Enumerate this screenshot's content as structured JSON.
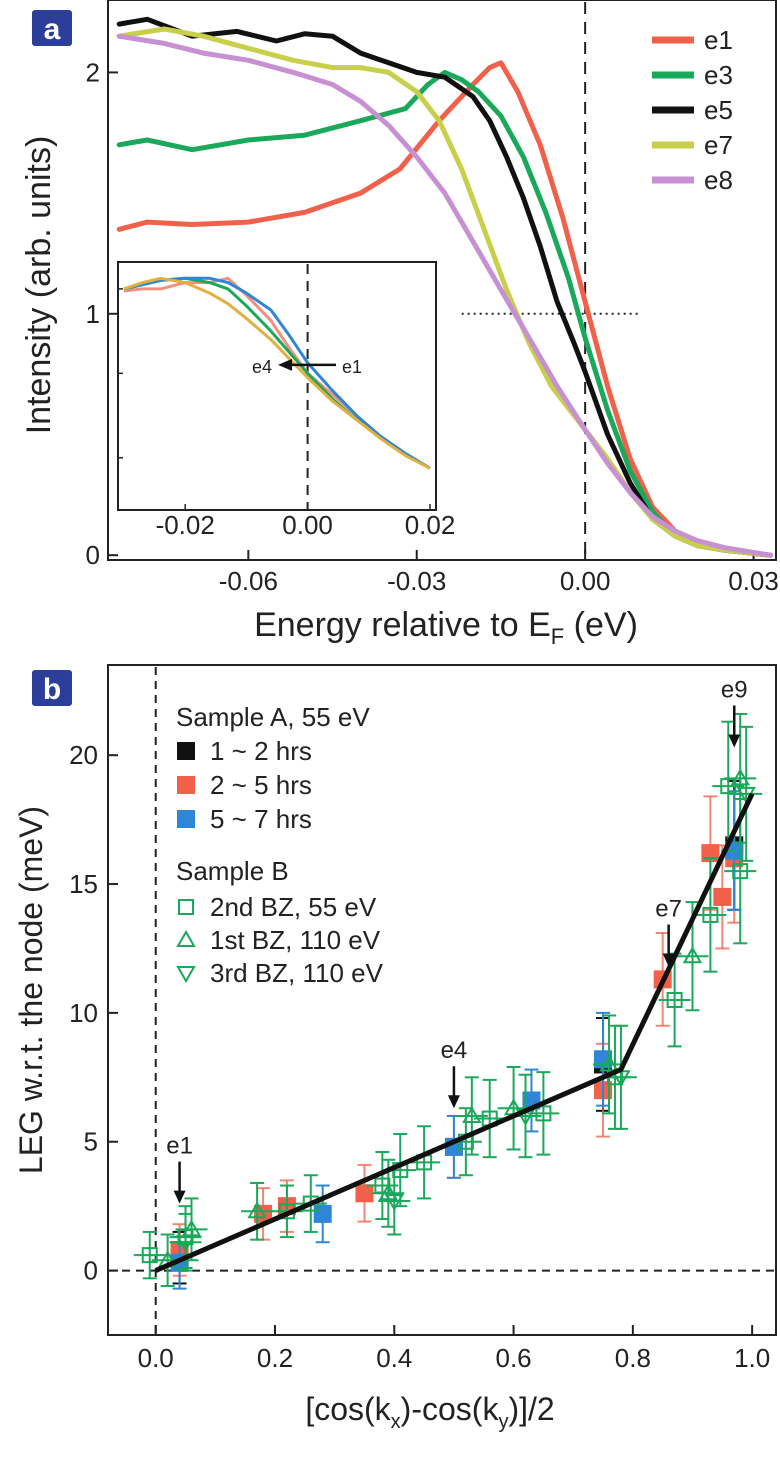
{
  "colors": {
    "e1": "#f0604a",
    "e3": "#1aa85a",
    "e5": "#111111",
    "e7": "#c8cf4a",
    "e8": "#c690d3",
    "inset_e1": "#f29080",
    "inset_e2": "#1aa85a",
    "inset_e3": "#2f86d6",
    "inset_e4": "#e0b040",
    "black": "#111111",
    "red": "#f0604a",
    "blue": "#2f86d6",
    "green": "#1aa85a",
    "tag_bg": "#2a3e9a"
  },
  "chart_data": [
    {
      "type": "line",
      "panel": "a",
      "xlabel": "Energy relative to E",
      "xlabel_sub": "F",
      "xlabel_unit": " (eV)",
      "ylabel": "Intensity (arb. units)",
      "xlim": [
        -0.085,
        0.034
      ],
      "ylim": [
        -0.02,
        2.3
      ],
      "x_ticks": [
        -0.06,
        -0.03,
        0.0,
        0.03
      ],
      "x_tick_labels": [
        "-0.06",
        "-0.03",
        "0.00",
        "0.03"
      ],
      "y_ticks": [
        0,
        1,
        2
      ],
      "y_tick_labels": [
        "0",
        "1",
        "2"
      ],
      "legend_position": "top-right",
      "vline_x": 0.0,
      "hline": {
        "y": 1.0,
        "x_from": -0.022,
        "x_to": 0.01
      },
      "series": [
        {
          "name": "e1",
          "x": [
            -0.083,
            -0.078,
            -0.07,
            -0.06,
            -0.05,
            -0.04,
            -0.033,
            -0.026,
            -0.02,
            -0.017,
            -0.015,
            -0.012,
            -0.008,
            -0.004,
            0.0,
            0.004,
            0.008,
            0.012,
            0.016,
            0.02,
            0.025,
            0.033
          ],
          "y": [
            1.35,
            1.38,
            1.37,
            1.38,
            1.42,
            1.5,
            1.6,
            1.8,
            1.95,
            2.02,
            2.04,
            1.92,
            1.7,
            1.4,
            1.05,
            0.7,
            0.4,
            0.2,
            0.1,
            0.05,
            0.02,
            0.0
          ]
        },
        {
          "name": "e3",
          "x": [
            -0.083,
            -0.078,
            -0.07,
            -0.06,
            -0.05,
            -0.04,
            -0.032,
            -0.028,
            -0.025,
            -0.022,
            -0.019,
            -0.015,
            -0.011,
            -0.007,
            -0.003,
            0.0,
            0.004,
            0.008,
            0.012,
            0.016,
            0.02,
            0.025,
            0.033
          ],
          "y": [
            1.7,
            1.72,
            1.68,
            1.72,
            1.74,
            1.8,
            1.85,
            1.95,
            2.0,
            1.97,
            1.92,
            1.82,
            1.65,
            1.42,
            1.15,
            0.9,
            0.6,
            0.35,
            0.18,
            0.08,
            0.04,
            0.02,
            0.0
          ]
        },
        {
          "name": "e5",
          "x": [
            -0.083,
            -0.078,
            -0.07,
            -0.062,
            -0.055,
            -0.05,
            -0.045,
            -0.04,
            -0.035,
            -0.03,
            -0.025,
            -0.02,
            -0.017,
            -0.014,
            -0.011,
            -0.008,
            -0.005,
            -0.002,
            0.0,
            0.004,
            0.008,
            0.012,
            0.016,
            0.02,
            0.025,
            0.033
          ],
          "y": [
            2.2,
            2.22,
            2.15,
            2.17,
            2.13,
            2.16,
            2.15,
            2.08,
            2.04,
            2.0,
            1.98,
            1.9,
            1.8,
            1.65,
            1.48,
            1.28,
            1.05,
            0.88,
            0.76,
            0.5,
            0.3,
            0.15,
            0.08,
            0.04,
            0.02,
            0.0
          ]
        },
        {
          "name": "e7",
          "x": [
            -0.083,
            -0.075,
            -0.068,
            -0.06,
            -0.052,
            -0.045,
            -0.04,
            -0.035,
            -0.03,
            -0.026,
            -0.022,
            -0.018,
            -0.014,
            -0.01,
            -0.006,
            -0.002,
            0.0,
            0.004,
            0.008,
            0.012,
            0.016,
            0.02,
            0.025,
            0.033
          ],
          "y": [
            2.15,
            2.18,
            2.15,
            2.1,
            2.05,
            2.02,
            2.02,
            2.0,
            1.92,
            1.8,
            1.6,
            1.35,
            1.1,
            0.88,
            0.7,
            0.58,
            0.52,
            0.4,
            0.26,
            0.15,
            0.08,
            0.04,
            0.02,
            0.0
          ]
        },
        {
          "name": "e8",
          "x": [
            -0.083,
            -0.075,
            -0.068,
            -0.06,
            -0.052,
            -0.045,
            -0.04,
            -0.035,
            -0.03,
            -0.025,
            -0.02,
            -0.015,
            -0.01,
            -0.005,
            0.0,
            0.004,
            0.008,
            0.012,
            0.016,
            0.02,
            0.025,
            0.033
          ],
          "y": [
            2.15,
            2.12,
            2.08,
            2.05,
            2.0,
            1.95,
            1.88,
            1.78,
            1.65,
            1.5,
            1.3,
            1.1,
            0.9,
            0.7,
            0.52,
            0.38,
            0.26,
            0.16,
            0.1,
            0.06,
            0.03,
            0.0
          ]
        }
      ],
      "inset": {
        "type": "line",
        "xlim": [
          -0.03,
          0.02
        ],
        "ylim": [
          0,
          1.08
        ],
        "x_ticks": [
          -0.02,
          0.0,
          0.02
        ],
        "x_tick_labels": [
          "-0.02",
          "0.00",
          "0.02"
        ],
        "vline_x": 0.0,
        "annotation_left": "e4",
        "annotation_right": "e1",
        "series": [
          {
            "x": [
              -0.03,
              -0.027,
              -0.024,
              -0.02,
              -0.016,
              -0.013,
              -0.01,
              -0.006,
              -0.003,
              0.0,
              0.004,
              0.008,
              0.012,
              0.016,
              0.02
            ],
            "y": [
              0.99,
              1.0,
              1.0,
              1.03,
              1.03,
              1.05,
              0.97,
              0.85,
              0.72,
              0.6,
              0.5,
              0.4,
              0.3,
              0.22,
              0.15
            ]
          },
          {
            "x": [
              -0.03,
              -0.027,
              -0.024,
              -0.02,
              -0.016,
              -0.013,
              -0.01,
              -0.006,
              -0.003,
              0.0,
              0.004,
              0.008,
              0.012,
              0.016,
              0.02
            ],
            "y": [
              1.0,
              1.02,
              1.04,
              1.05,
              1.03,
              1.0,
              0.92,
              0.8,
              0.7,
              0.6,
              0.48,
              0.38,
              0.3,
              0.22,
              0.15
            ]
          },
          {
            "x": [
              -0.03,
              -0.027,
              -0.024,
              -0.02,
              -0.016,
              -0.013,
              -0.01,
              -0.006,
              -0.003,
              0.0,
              0.004,
              0.008,
              0.012,
              0.016,
              0.02
            ],
            "y": [
              1.0,
              1.02,
              1.04,
              1.05,
              1.05,
              1.03,
              0.98,
              0.9,
              0.78,
              0.65,
              0.52,
              0.4,
              0.3,
              0.22,
              0.15
            ]
          },
          {
            "x": [
              -0.03,
              -0.027,
              -0.024,
              -0.02,
              -0.016,
              -0.013,
              -0.01,
              -0.006,
              -0.003,
              0.0,
              0.004,
              0.008,
              0.012,
              0.016,
              0.02
            ],
            "y": [
              1.0,
              1.03,
              1.05,
              1.03,
              0.98,
              0.93,
              0.86,
              0.76,
              0.67,
              0.58,
              0.47,
              0.38,
              0.29,
              0.21,
              0.15
            ]
          }
        ]
      }
    },
    {
      "type": "scatter",
      "panel": "b",
      "xlabel": "[cos(k",
      "xlabel_sub1": "x",
      "xlabel_mid": ")-cos(k",
      "xlabel_sub2": "y",
      "xlabel_end": ")]/2",
      "ylabel": "LEG w.r.t. the node (meV)",
      "xlim": [
        -0.08,
        1.04
      ],
      "ylim": [
        -2.5,
        23.5
      ],
      "x_ticks": [
        0.0,
        0.2,
        0.4,
        0.6,
        0.8,
        1.0
      ],
      "x_tick_labels": [
        "0.0",
        "0.2",
        "0.4",
        "0.6",
        "0.8",
        "1.0"
      ],
      "y_ticks": [
        0,
        5,
        10,
        15,
        20
      ],
      "y_tick_labels": [
        "0",
        "5",
        "10",
        "15",
        "20"
      ],
      "legend_position": "top-left",
      "legend_group_a": "Sample A, 55 eV",
      "legend_group_b": "Sample B",
      "legend_entries": [
        "1 ~ 2 hrs",
        "2 ~ 5 hrs",
        "5 ~ 7 hrs",
        "2nd BZ, 55 eV",
        "1st BZ, 110 eV",
        "3rd BZ, 110 eV"
      ],
      "annotations": [
        {
          "label": "e1",
          "x": 0.04,
          "y": 2.6
        },
        {
          "label": "e4",
          "x": 0.5,
          "y": 6.3
        },
        {
          "label": "e7",
          "x": 0.86,
          "y": 11.8
        },
        {
          "label": "e9",
          "x": 0.97,
          "y": 20.3
        }
      ],
      "fit_line": {
        "x": [
          0.0,
          0.78,
          1.0
        ],
        "y": [
          0.0,
          7.8,
          18.5
        ]
      },
      "series": [
        {
          "name": "1 ~ 2 hrs",
          "marker": "square-filled",
          "color_key": "black",
          "x": [
            0.04,
            0.75,
            0.97
          ],
          "y": [
            0.5,
            8.0,
            16.5
          ],
          "err": [
            1.0,
            1.8,
            2.5
          ]
        },
        {
          "name": "2 ~ 5 hrs",
          "marker": "square-filled",
          "color_key": "red",
          "x": [
            0.04,
            0.18,
            0.22,
            0.35,
            0.5,
            0.75,
            0.85,
            0.93,
            0.95,
            0.97
          ],
          "y": [
            0.8,
            2.2,
            2.5,
            3.0,
            4.8,
            7.0,
            11.3,
            16.2,
            14.5,
            16.0
          ],
          "err": [
            1.0,
            1.0,
            1.0,
            1.1,
            1.2,
            1.8,
            1.8,
            2.2,
            2.0,
            2.5
          ]
        },
        {
          "name": "5 ~ 7 hrs",
          "marker": "square-filled",
          "color_key": "blue",
          "x": [
            0.04,
            0.28,
            0.5,
            0.63,
            0.75,
            0.97
          ],
          "y": [
            0.3,
            2.2,
            4.8,
            6.6,
            8.2,
            16.3
          ],
          "err": [
            1.0,
            1.1,
            1.2,
            1.2,
            1.8,
            2.3
          ]
        },
        {
          "name": "2nd BZ, 55 eV",
          "marker": "square-open",
          "color_key": "green",
          "x": [
            -0.01,
            0.05,
            0.22,
            0.26,
            0.38,
            0.41,
            0.45,
            0.52,
            0.56,
            0.65,
            0.77,
            0.87,
            0.93,
            0.96,
            0.98
          ],
          "y": [
            0.6,
            1.3,
            2.3,
            2.6,
            3.3,
            3.9,
            4.2,
            5.0,
            5.9,
            6.1,
            7.5,
            10.5,
            13.8,
            18.8,
            15.5
          ],
          "err": [
            0.9,
            1.2,
            1.0,
            1.1,
            1.3,
            1.4,
            1.4,
            1.3,
            1.5,
            1.6,
            2.0,
            1.8,
            2.2,
            2.5,
            2.8
          ]
        },
        {
          "name": "1st BZ, 110 eV",
          "marker": "triangle-up-open",
          "color_key": "green",
          "x": [
            0.02,
            0.06,
            0.17,
            0.39,
            0.53,
            0.6,
            0.76,
            0.9,
            0.98
          ],
          "y": [
            0.4,
            1.6,
            2.3,
            3.0,
            6.0,
            6.3,
            8.0,
            12.2,
            19.1
          ],
          "err": [
            1.0,
            1.2,
            1.1,
            1.3,
            1.5,
            1.6,
            1.9,
            2.1,
            2.5
          ]
        },
        {
          "name": "3rd BZ, 110 eV",
          "marker": "triangle-down-open",
          "color_key": "green",
          "x": [
            0.05,
            0.4,
            0.62,
            0.78,
            0.99
          ],
          "y": [
            1.1,
            2.7,
            6.0,
            7.5,
            18.5
          ],
          "err": [
            1.1,
            1.3,
            1.6,
            2.0,
            2.6
          ]
        }
      ]
    }
  ]
}
